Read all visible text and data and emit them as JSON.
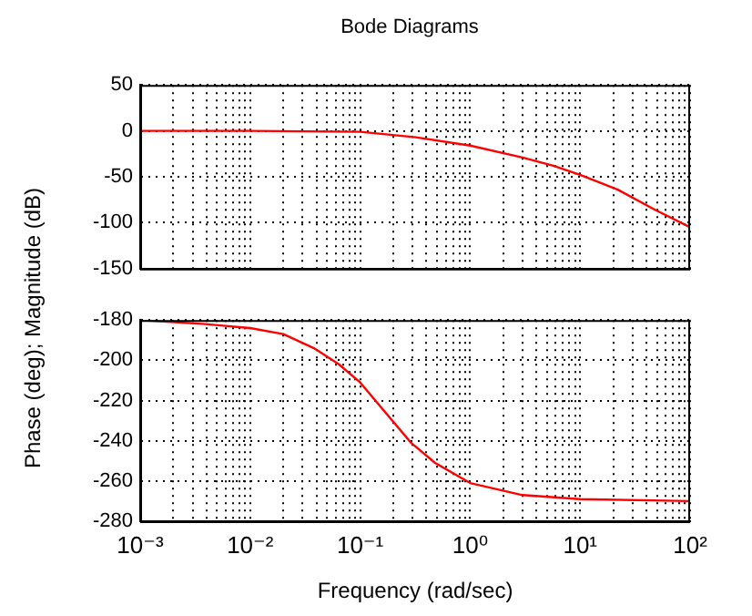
{
  "chart_data": [
    {
      "type": "line",
      "title": "Bode Diagrams",
      "ylabel": "Phase (deg); Magnitude (dB)",
      "log": "x",
      "grid": true,
      "tick_labels": "y",
      "xlim": [
        0.001,
        100
      ],
      "ylim": [
        -150,
        50
      ],
      "yticks": [
        -150,
        -100,
        -50,
        0,
        50
      ],
      "xticks": [
        {
          "value": 0.001,
          "label": null
        },
        {
          "value": 0.002,
          "label": null
        },
        {
          "value": 0.003,
          "label": null
        },
        {
          "value": 0.004,
          "label": null
        },
        {
          "value": 0.005,
          "label": null
        },
        {
          "value": 0.006,
          "label": null
        },
        {
          "value": 0.007,
          "label": null
        },
        {
          "value": 0.008,
          "label": null
        },
        {
          "value": 0.009,
          "label": null
        },
        {
          "value": 0.01,
          "label": null
        },
        {
          "value": 0.02,
          "label": null
        },
        {
          "value": 0.03,
          "label": null
        },
        {
          "value": 0.04,
          "label": null
        },
        {
          "value": 0.05,
          "label": null
        },
        {
          "value": 0.06,
          "label": null
        },
        {
          "value": 0.07,
          "label": null
        },
        {
          "value": 0.08,
          "label": null
        },
        {
          "value": 0.09,
          "label": null
        },
        {
          "value": 0.1,
          "label": null
        },
        {
          "value": 0.2,
          "label": null
        },
        {
          "value": 0.3,
          "label": null
        },
        {
          "value": 0.4,
          "label": null
        },
        {
          "value": 0.5,
          "label": null
        },
        {
          "value": 0.6,
          "label": null
        },
        {
          "value": 0.7,
          "label": null
        },
        {
          "value": 0.8,
          "label": null
        },
        {
          "value": 0.9,
          "label": null
        },
        {
          "value": 1,
          "label": null
        },
        {
          "value": 2,
          "label": null
        },
        {
          "value": 3,
          "label": null
        },
        {
          "value": 4,
          "label": null
        },
        {
          "value": 5,
          "label": null
        },
        {
          "value": 6,
          "label": null
        },
        {
          "value": 7,
          "label": null
        },
        {
          "value": 8,
          "label": null
        },
        {
          "value": 9,
          "label": null
        },
        {
          "value": 10,
          "label": null
        },
        {
          "value": 20,
          "label": null
        },
        {
          "value": 30,
          "label": null
        },
        {
          "value": 40,
          "label": null
        },
        {
          "value": 50,
          "label": null
        },
        {
          "value": 60,
          "label": null
        },
        {
          "value": 70,
          "label": null
        },
        {
          "value": 80,
          "label": null
        },
        {
          "value": 90,
          "label": null
        },
        {
          "value": 100,
          "label": null
        }
      ],
      "series": [
        {
          "color": "#ff0000",
          "x": [
            0.001,
            0.01,
            0.1,
            0.32,
            1,
            3,
            5.7,
            10,
            22,
            48,
            100
          ],
          "values": [
            0,
            0,
            -1,
            -7,
            -16,
            -29,
            -38,
            -48,
            -64,
            -86,
            -105
          ]
        }
      ]
    },
    {
      "type": "line",
      "xlabel": "Frequency (rad/sec)",
      "log": "x",
      "grid": true,
      "xlim": [
        0.001,
        100
      ],
      "ylim": [
        -280,
        -180
      ],
      "yticks": [
        -280,
        -260,
        -240,
        -220,
        -200,
        -180
      ],
      "xticks": [
        {
          "value": 0.001,
          "label": "10⁻³"
        },
        {
          "value": 0.002,
          "label": null
        },
        {
          "value": 0.003,
          "label": null
        },
        {
          "value": 0.004,
          "label": null
        },
        {
          "value": 0.005,
          "label": null
        },
        {
          "value": 0.006,
          "label": null
        },
        {
          "value": 0.007,
          "label": null
        },
        {
          "value": 0.008,
          "label": null
        },
        {
          "value": 0.009,
          "label": null
        },
        {
          "value": 0.01,
          "label": "10⁻²"
        },
        {
          "value": 0.02,
          "label": null
        },
        {
          "value": 0.03,
          "label": null
        },
        {
          "value": 0.04,
          "label": null
        },
        {
          "value": 0.05,
          "label": null
        },
        {
          "value": 0.06,
          "label": null
        },
        {
          "value": 0.07,
          "label": null
        },
        {
          "value": 0.08,
          "label": null
        },
        {
          "value": 0.09,
          "label": null
        },
        {
          "value": 0.1,
          "label": "10⁻¹"
        },
        {
          "value": 0.2,
          "label": null
        },
        {
          "value": 0.3,
          "label": null
        },
        {
          "value": 0.4,
          "label": null
        },
        {
          "value": 0.5,
          "label": null
        },
        {
          "value": 0.6,
          "label": null
        },
        {
          "value": 0.7,
          "label": null
        },
        {
          "value": 0.8,
          "label": null
        },
        {
          "value": 0.9,
          "label": null
        },
        {
          "value": 1,
          "label": "10⁰"
        },
        {
          "value": 2,
          "label": null
        },
        {
          "value": 3,
          "label": null
        },
        {
          "value": 4,
          "label": null
        },
        {
          "value": 5,
          "label": null
        },
        {
          "value": 6,
          "label": null
        },
        {
          "value": 7,
          "label": null
        },
        {
          "value": 8,
          "label": null
        },
        {
          "value": 9,
          "label": null
        },
        {
          "value": 10,
          "label": "10¹"
        },
        {
          "value": 20,
          "label": null
        },
        {
          "value": 30,
          "label": null
        },
        {
          "value": 40,
          "label": null
        },
        {
          "value": 50,
          "label": null
        },
        {
          "value": 60,
          "label": null
        },
        {
          "value": 70,
          "label": null
        },
        {
          "value": 80,
          "label": null
        },
        {
          "value": 90,
          "label": null
        },
        {
          "value": 100,
          "label": "10²"
        }
      ],
      "series": [
        {
          "color": "#ff0000",
          "x": [
            0.001,
            0.0039,
            0.01,
            0.02,
            0.038,
            0.064,
            0.1,
            0.17,
            0.29,
            0.48,
            1,
            3,
            10,
            100
          ],
          "values": [
            -180,
            -182,
            -184,
            -187,
            -194,
            -202,
            -211,
            -226,
            -241,
            -251,
            -261,
            -267,
            -269,
            -270
          ]
        }
      ]
    }
  ]
}
